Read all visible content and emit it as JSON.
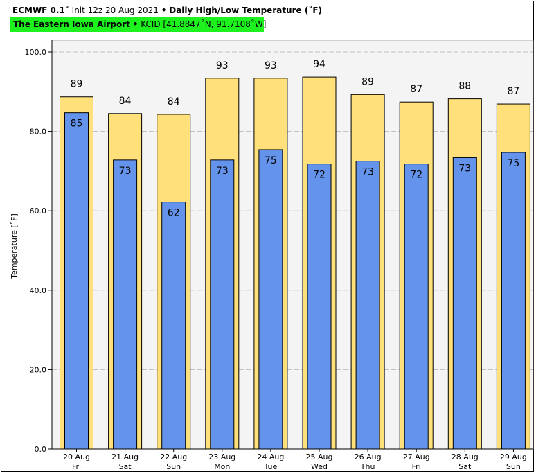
{
  "header": {
    "model": "ECMWF 0.1˚",
    "init": "Init 12z 20 Aug 2021",
    "bullet": "•",
    "product": "Daily High/Low Temperature (˚F)"
  },
  "location": {
    "name": "The Eastern Iowa Airport",
    "bullet": "•",
    "station": "KCID [41.8847˚N, 91.7108˚W]",
    "highlight_color": "#1ef21e"
  },
  "chart_data": {
    "type": "bar",
    "ylabel": "Temperature [˚F]",
    "ylim": [
      0,
      100
    ],
    "yticks": [
      "0.0",
      "20.0",
      "40.0",
      "60.0",
      "80.0",
      "100.0"
    ],
    "categories": [
      {
        "date": "20 Aug",
        "day": "Fri"
      },
      {
        "date": "21 Aug",
        "day": "Sat"
      },
      {
        "date": "22 Aug",
        "day": "Sun"
      },
      {
        "date": "23 Aug",
        "day": "Mon"
      },
      {
        "date": "24 Aug",
        "day": "Tue"
      },
      {
        "date": "25 Aug",
        "day": "Wed"
      },
      {
        "date": "26 Aug",
        "day": "Thu"
      },
      {
        "date": "27 Aug",
        "day": "Fri"
      },
      {
        "date": "28 Aug",
        "day": "Sat"
      },
      {
        "date": "29 Aug",
        "day": "Sun"
      }
    ],
    "series": [
      {
        "values": [
          88.7,
          84.5,
          84.3,
          93.4,
          93.4,
          93.7,
          89.3,
          87.4,
          88.2,
          86.9
        ],
        "labels": [
          "89",
          "84",
          "84",
          "93",
          "93",
          "94",
          "89",
          "87",
          "88",
          "87"
        ],
        "color": "#ffe07a"
      },
      {
        "values": [
          84.7,
          72.8,
          62.2,
          72.8,
          75.4,
          71.8,
          72.5,
          71.8,
          73.4,
          74.7
        ],
        "labels": [
          "85",
          "73",
          "62",
          "73",
          "75",
          "72",
          "73",
          "72",
          "73",
          "75"
        ],
        "color": "#6493eb"
      }
    ],
    "grid": true,
    "background": "#f4f4f4"
  }
}
